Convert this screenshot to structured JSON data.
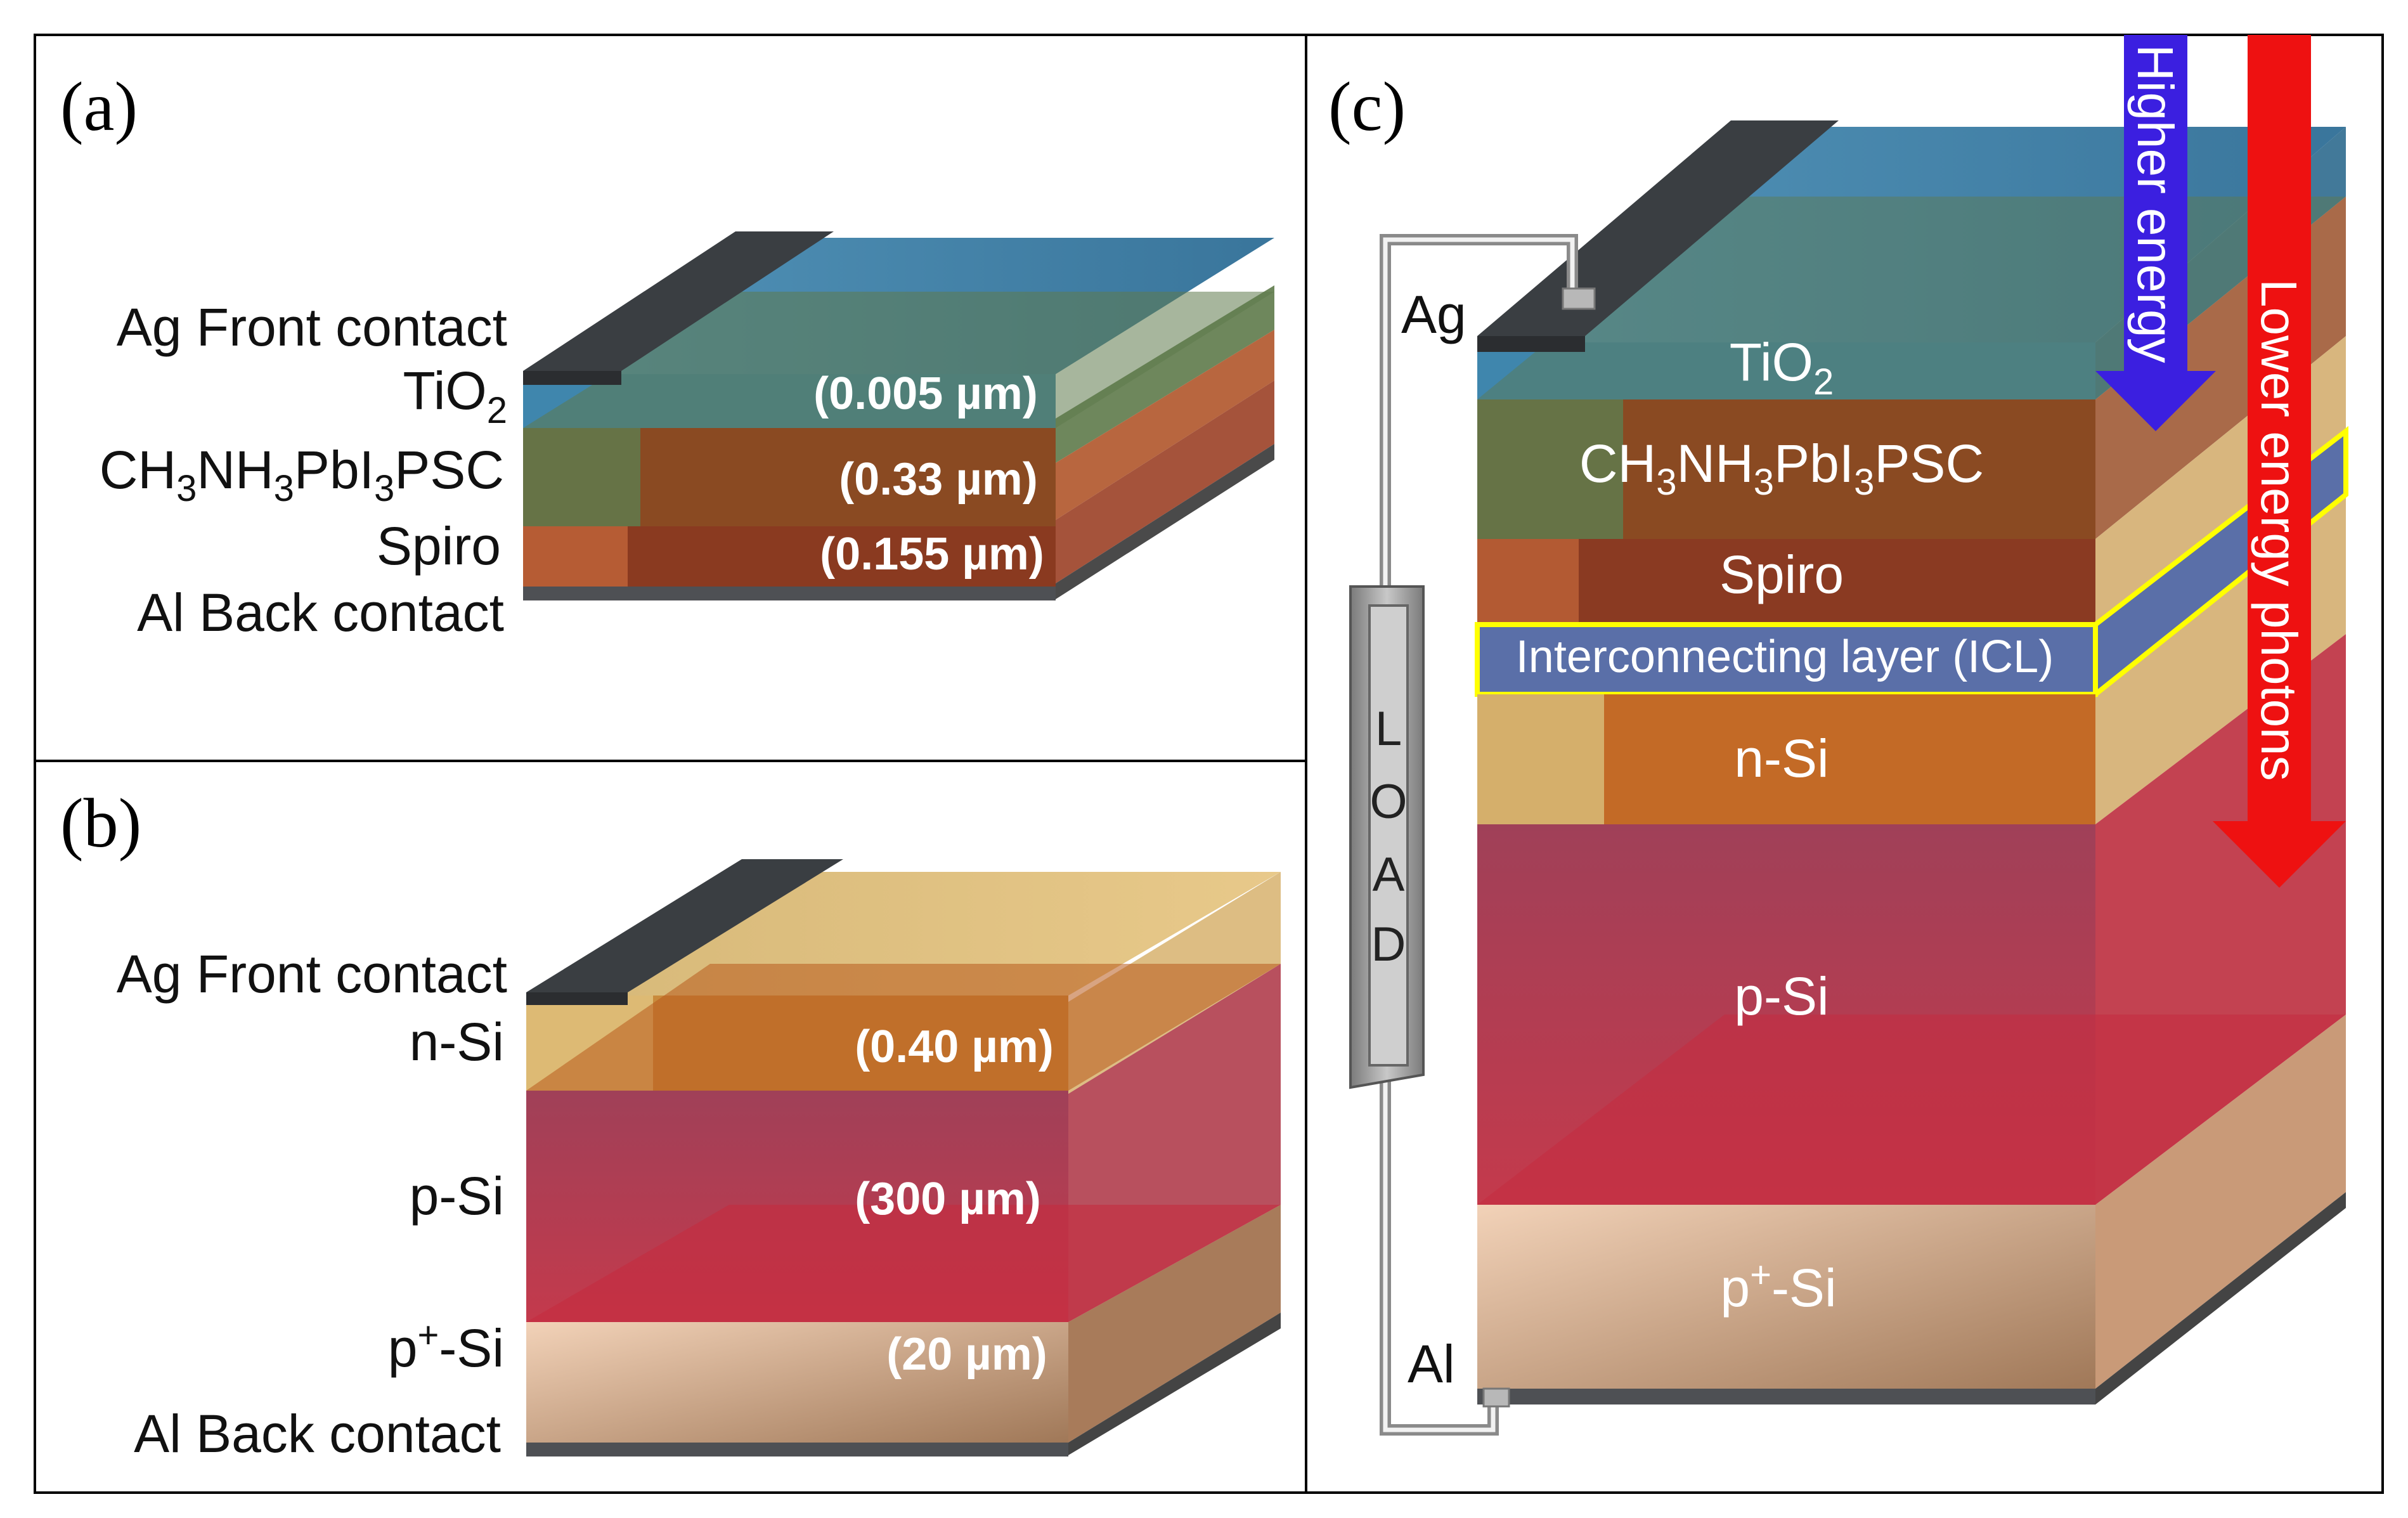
{
  "figure": {
    "panels": {
      "a": {
        "label": "(a)",
        "layer_labels": {
          "ag_front": "Ag Front contact",
          "tio2_main": "TiO",
          "tio2_sub": "2",
          "psc_p1": "CH",
          "psc_s1": "3",
          "psc_p2": "NH",
          "psc_s2": "3",
          "psc_p3": "PbI",
          "psc_s3": "3",
          "psc_p4": "PSC",
          "spiro": "Spiro",
          "al_back": "Al Back contact"
        },
        "thicknesses": {
          "tio2": "(0.005 µm)",
          "psc": "(0.33 µm)",
          "spiro": "(0.155 µm)"
        }
      },
      "b": {
        "label": "(b)",
        "layer_labels": {
          "ag_front": "Ag Front contact",
          "nsi": "n-Si",
          "psi": "p-Si",
          "ppsi_main": "p",
          "ppsi_sup": "+",
          "ppsi_rest": "-Si",
          "al_back": "Al Back contact"
        },
        "thicknesses": {
          "nsi": "(0.40 µm)",
          "psi": "(300 µm)",
          "ppsi": "(20 µm)"
        }
      },
      "c": {
        "label": "(c)",
        "layers": {
          "tio2_main": "TiO",
          "tio2_sub": "2",
          "psc_p1": "CH",
          "psc_s1": "3",
          "psc_p2": "NH",
          "psc_s2": "3",
          "psc_p3": "PbI",
          "psc_s3": "3",
          "psc_p4": "PSC",
          "spiro": "Spiro",
          "icl": "Interconnecting layer (ICL)",
          "nsi": "n-Si",
          "psi": "p-Si",
          "ppsi_main": "p",
          "ppsi_sup": "+",
          "ppsi_rest": "-Si"
        },
        "contacts": {
          "ag": "Ag",
          "al": "Al"
        },
        "load": [
          "L",
          "O",
          "A",
          "D"
        ],
        "arrows": {
          "higher": "Higher energy",
          "lower": "Lower energy photons"
        }
      }
    },
    "colors": {
      "tio2": "#3c7fa6",
      "psc": "#5f7a4c",
      "spiro": "#9a4a32",
      "orange": "#b8581f",
      "cream": "#d8bb78",
      "psi": "#b43c52",
      "ppsi": "#e8c4a8",
      "brown": "#8c6446",
      "contact": "#3a3e42",
      "icl": "#5a6fa8",
      "icl_border": "#ffff00",
      "higher_arrow": "#3b1fe0",
      "lower_arrow": "#ee1111"
    }
  }
}
